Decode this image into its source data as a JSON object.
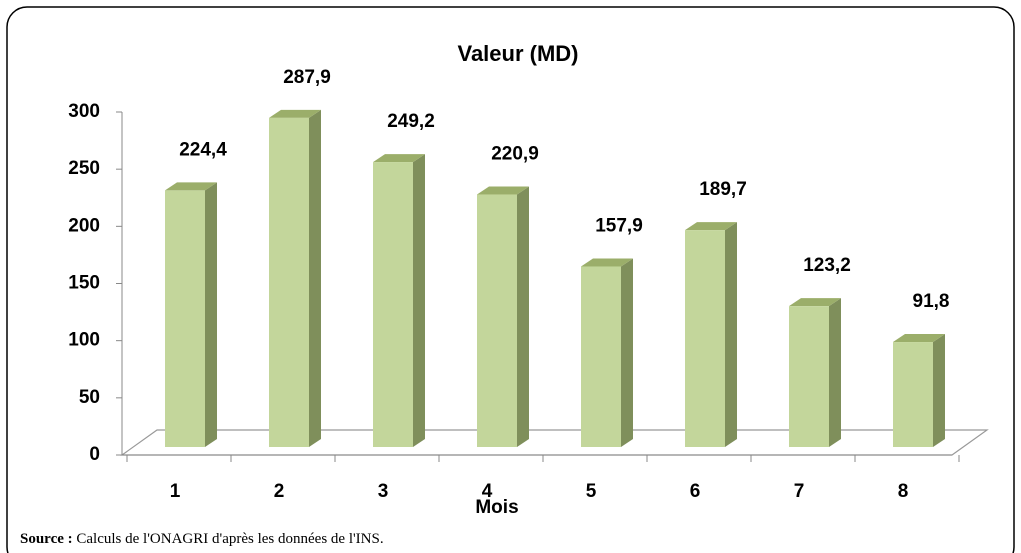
{
  "chart_data": {
    "type": "bar",
    "title": "Valeur (MD)",
    "x_label": "Mois",
    "categories": [
      "1",
      "2",
      "3",
      "4",
      "5",
      "6",
      "7",
      "8"
    ],
    "values": [
      224.4,
      287.9,
      249.2,
      220.9,
      157.9,
      189.7,
      123.2,
      91.8
    ],
    "value_labels": [
      "224,4",
      "287,9",
      "249,2",
      "220,9",
      "157,9",
      "189,7",
      "123,2",
      "91,8"
    ],
    "color": "#c3d69b",
    "ylim": [
      0,
      300
    ],
    "yticks": [
      0,
      50,
      100,
      150,
      200,
      250,
      300
    ]
  },
  "source": {
    "label": "Source :",
    "text": "Calculs de l'ONAGRI  d'après les données de l'INS."
  }
}
